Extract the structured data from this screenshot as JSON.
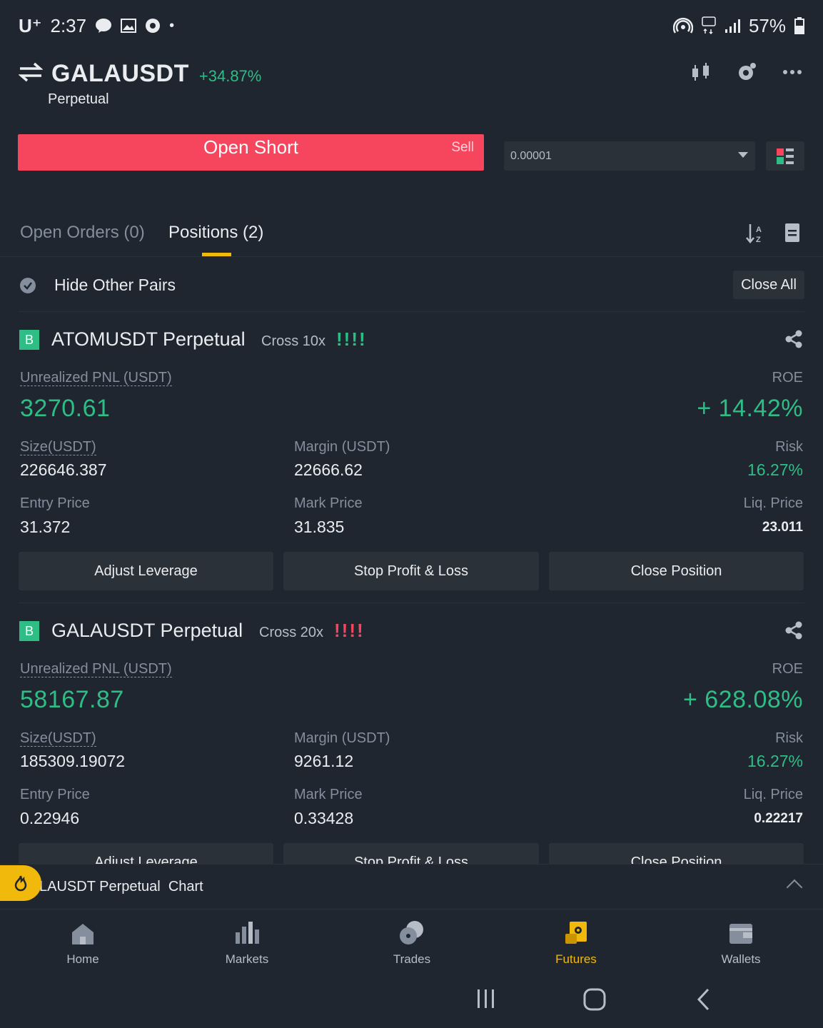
{
  "status_bar": {
    "carrier": "U⁺",
    "time": "2:37",
    "battery": "57%"
  },
  "header": {
    "pair": "GALAUSDT",
    "change": "+34.87%",
    "contract_type": "Perpetual",
    "icons": [
      "candlestick-icon",
      "settings-icon",
      "more-icon"
    ]
  },
  "order_bar": {
    "action_label": "Open Short",
    "side_label": "Sell",
    "precision_value": "0.00001"
  },
  "tabs": {
    "open_orders": "Open Orders (0)",
    "positions": "Positions (2)"
  },
  "filter": {
    "hide_other_pairs": "Hide Other Pairs",
    "close_all": "Close All"
  },
  "positions": [
    {
      "side": "B",
      "symbol": "ATOMUSDT Perpetual",
      "leverage": "Cross 10x",
      "risk_indicator": "!!!!",
      "pnl_label": "Unrealized PNL (USDT)",
      "pnl": "3270.61",
      "roe_label": "ROE",
      "roe": "+ 14.42%",
      "size_label": "Size(USDT)",
      "size": "226646.387",
      "margin_label": "Margin (USDT)",
      "margin": "22666.62",
      "risk_label": "Risk",
      "risk": "16.27%",
      "entry_label": "Entry Price",
      "entry": "31.372",
      "mark_label": "Mark Price",
      "mark": "31.835",
      "liq_label": "Liq. Price",
      "liq": "23.011",
      "buttons": [
        "Adjust Leverage",
        "Stop Profit & Loss",
        "Close Position"
      ],
      "risk_color": "#2ebd85"
    },
    {
      "side": "B",
      "symbol": "GALAUSDT Perpetual",
      "leverage": "Cross 20x",
      "risk_indicator": "!!!!",
      "pnl_label": "Unrealized PNL (USDT)",
      "pnl": "58167.87",
      "roe_label": "ROE",
      "roe": "+ 628.08%",
      "size_label": "Size(USDT)",
      "size": "185309.19072",
      "margin_label": "Margin (USDT)",
      "margin": "9261.12",
      "risk_label": "Risk",
      "risk": "16.27%",
      "entry_label": "Entry Price",
      "entry": "0.22946",
      "mark_label": "Mark Price",
      "mark": "0.33428",
      "liq_label": "Liq. Price",
      "liq": "0.22217",
      "buttons": [
        "Adjust Leverage",
        "Stop Profit & Loss",
        "Close Position"
      ],
      "risk_color": "#f6465d"
    }
  ],
  "chart_bar": {
    "label": "LAUSDT Perpetual  Chart"
  },
  "bottom_nav": [
    {
      "label": "Home",
      "icon": "home-icon",
      "active": false
    },
    {
      "label": "Markets",
      "icon": "markets-icon",
      "active": false
    },
    {
      "label": "Trades",
      "icon": "trades-icon",
      "active": false
    },
    {
      "label": "Futures",
      "icon": "futures-icon",
      "active": true
    },
    {
      "label": "Wallets",
      "icon": "wallets-icon",
      "active": false
    }
  ],
  "colors": {
    "background": "#1f2630",
    "green": "#2ebd85",
    "red": "#f6465d",
    "accent": "#f0b90b"
  }
}
